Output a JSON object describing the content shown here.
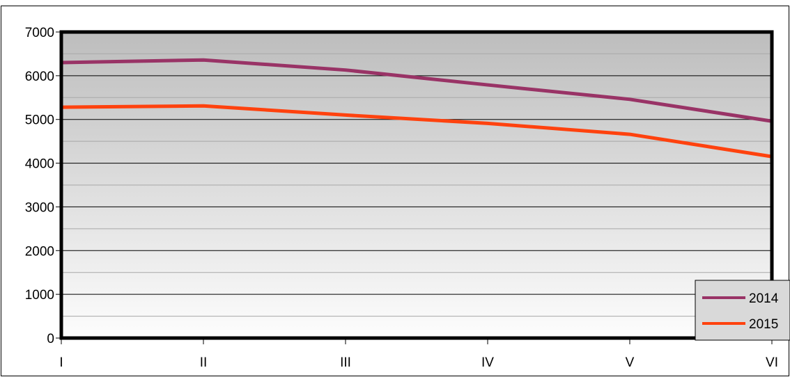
{
  "chart_data": {
    "type": "line",
    "title": "",
    "xlabel": "",
    "ylabel": "",
    "categories": [
      "I",
      "II",
      "III",
      "IV",
      "V",
      "VI"
    ],
    "y_ticks": [
      0,
      1000,
      2000,
      3000,
      4000,
      5000,
      6000,
      7000
    ],
    "ylim": [
      0,
      7000
    ],
    "grid": "major and minor horizontal gridlines",
    "legend_position": "bottom-right",
    "series": [
      {
        "name": "2014",
        "color": "#993366",
        "values": [
          6300,
          6360,
          6130,
          5790,
          5460,
          4960
        ]
      },
      {
        "name": "2015",
        "color": "#ff420e",
        "values": [
          5280,
          5310,
          5100,
          4910,
          4660,
          4150
        ]
      }
    ]
  }
}
